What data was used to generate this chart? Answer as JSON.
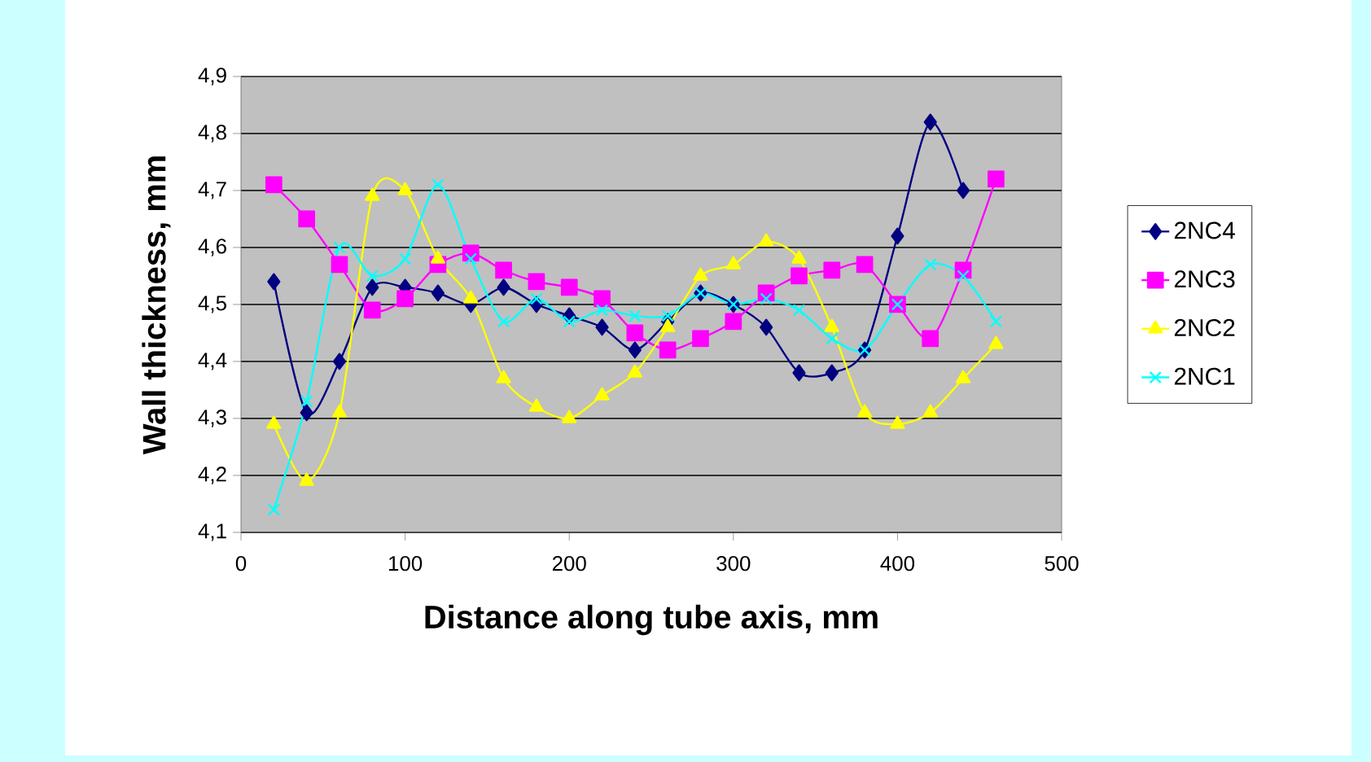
{
  "chart_data": {
    "type": "line",
    "xlabel": "Distance along tube axis, mm",
    "ylabel": "Wall thickness, mm",
    "xlim": [
      0,
      500
    ],
    "xticks": [
      0,
      100,
      200,
      300,
      400,
      500
    ],
    "ylim": [
      4.1,
      4.9
    ],
    "yticks": [
      {
        "value": 4.1,
        "label": "4,1"
      },
      {
        "value": 4.2,
        "label": "4,2"
      },
      {
        "value": 4.3,
        "label": "4,3"
      },
      {
        "value": 4.4,
        "label": "4,4"
      },
      {
        "value": 4.5,
        "label": "4,5"
      },
      {
        "value": 4.6,
        "label": "4,6"
      },
      {
        "value": 4.7,
        "label": "4,7"
      },
      {
        "value": 4.8,
        "label": "4,8"
      },
      {
        "value": 4.9,
        "label": "4,9"
      }
    ],
    "grid": "y",
    "legend": "right",
    "series": [
      {
        "name": "2NC4",
        "color": "#000080",
        "marker": "diamond",
        "x": [
          20,
          40,
          60,
          80,
          100,
          120,
          140,
          160,
          180,
          200,
          220,
          240,
          260,
          280,
          300,
          320,
          340,
          360,
          380,
          400,
          420,
          440
        ],
        "values": [
          4.54,
          4.31,
          4.4,
          4.53,
          4.53,
          4.52,
          4.5,
          4.53,
          4.5,
          4.48,
          4.46,
          4.42,
          4.47,
          4.52,
          4.5,
          4.46,
          4.38,
          4.38,
          4.42,
          4.62,
          4.82,
          4.7
        ]
      },
      {
        "name": "2NC3",
        "color": "#ff00ff",
        "marker": "square",
        "x": [
          20,
          40,
          60,
          80,
          100,
          120,
          140,
          160,
          180,
          200,
          220,
          240,
          260,
          280,
          300,
          320,
          340,
          360,
          380,
          400,
          420,
          440,
          460
        ],
        "values": [
          4.71,
          4.65,
          4.57,
          4.49,
          4.51,
          4.57,
          4.59,
          4.56,
          4.54,
          4.53,
          4.51,
          4.45,
          4.42,
          4.44,
          4.47,
          4.52,
          4.55,
          4.56,
          4.57,
          4.5,
          4.44,
          4.56,
          4.72
        ]
      },
      {
        "name": "2NC2",
        "color": "#ffff00",
        "marker": "triangle",
        "x": [
          20,
          40,
          60,
          80,
          100,
          120,
          140,
          160,
          180,
          200,
          220,
          240,
          260,
          280,
          300,
          320,
          340,
          360,
          380,
          400,
          420,
          440,
          460
        ],
        "values": [
          4.29,
          4.19,
          4.31,
          4.69,
          4.7,
          4.58,
          4.51,
          4.37,
          4.32,
          4.3,
          4.34,
          4.38,
          4.46,
          4.55,
          4.57,
          4.61,
          4.58,
          4.46,
          4.31,
          4.29,
          4.31,
          4.37,
          4.43
        ]
      },
      {
        "name": "2NC1",
        "color": "#00ffff",
        "marker": "cross",
        "x": [
          20,
          40,
          60,
          80,
          100,
          120,
          140,
          160,
          180,
          200,
          220,
          240,
          260,
          280,
          300,
          320,
          340,
          360,
          380,
          400,
          420,
          440,
          460
        ],
        "values": [
          4.14,
          4.33,
          4.6,
          4.55,
          4.58,
          4.71,
          4.58,
          4.47,
          4.51,
          4.47,
          4.49,
          4.48,
          4.48,
          4.52,
          4.5,
          4.51,
          4.49,
          4.44,
          4.42,
          4.5,
          4.57,
          4.55,
          4.47
        ]
      }
    ]
  }
}
